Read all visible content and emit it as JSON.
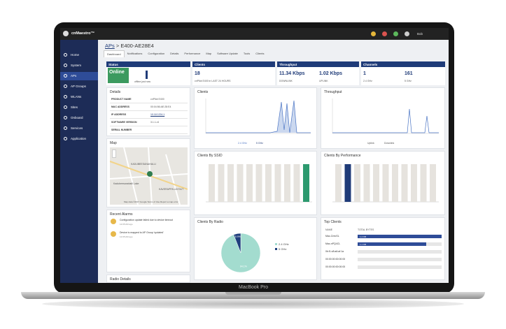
{
  "app": {
    "logo": "cnMaestro™",
    "user": "Bob"
  },
  "sidebar": [
    "Home",
    "System",
    "APs",
    "AP Groups",
    "WLANs",
    "Sites",
    "Onboard",
    "Services",
    "Application"
  ],
  "breadcrumb": {
    "parent": "APs",
    "current": "> E400-AE28E4"
  },
  "tabs": [
    "Dashboard",
    "Notifications",
    "Configuration",
    "Details",
    "Performance",
    "Map",
    "Software Update",
    "Tools",
    "Clients"
  ],
  "summary": {
    "status": {
      "title": "Status",
      "state": "Online",
      "sub": "offline just now"
    },
    "clients": {
      "title": "Clients",
      "value": "18",
      "sub": "cnPilot E400 in LAST 24 HOURS"
    },
    "throughput": {
      "title": "Throughput",
      "down": "11.34 Kbps",
      "down_label": "DOWNLINK",
      "up": "1.02 Kbps",
      "up_label": "UPLINK"
    },
    "channels": {
      "title": "Channels",
      "c24": "1",
      "c24_label": "2.4 GHz",
      "c5": "161",
      "c5_label": "5 GHz"
    }
  },
  "details": {
    "title": "Details",
    "rows": [
      [
        "PRODUCT NAME",
        "cnPilot E400"
      ],
      [
        "MAC ADDRESS",
        "00:04:56:AE:28:E4"
      ],
      [
        "IP ADDRESS",
        "10.110.224.1"
      ],
      [
        "SOFTWARE VERSION",
        "3.1.1-r4"
      ],
      [
        "SERIAL NUMBER"
      ]
    ]
  },
  "map": {
    "title": "Map",
    "labels": [
      "KADUBEESANAHALLI",
      "Kadubeesanahalli Lake",
      "KAVERAPPA LAYOUT"
    ],
    "footer": "Map data ©2017 Google  Terms of Use  Report a map error"
  },
  "alarms": {
    "title": "Recent Alarms",
    "items": [
      {
        "text": "Configuration update failed due to device timeout",
        "time": "12:05 AM ago"
      },
      {
        "text": "Device is mapped to AP Group 'updated'",
        "time": "12:05 AM ago"
      }
    ]
  },
  "panels": {
    "clients": "Clients",
    "throughput": "Throughput",
    "ssid": "Clients By SSID",
    "performance": "Clients By Performance",
    "radio": "Clients By Radio",
    "top": "Top Clients",
    "radio_details": "Radio Details"
  },
  "legends": {
    "clients": [
      "2.4 GHz",
      "5 GHz"
    ],
    "throughput": [
      "Uplink",
      "Downlink"
    ]
  },
  "radio_chart": {
    "type": "pie",
    "categories": [
      "2.4 GHz",
      "5 GHz"
    ],
    "values": [
      94.1,
      5.9
    ],
    "value_labels": [
      "94.1%",
      "5.9%"
    ],
    "colors": [
      "#a3dccf",
      "#1f3f7d"
    ]
  },
  "top_clients": {
    "headers": [
      "NAME",
      "TOTAL BYTES"
    ],
    "rows": [
      {
        "name": "Mac-CreoSL",
        "usage": "1.4 KB"
      },
      {
        "name": "Mac-nPQ4CL",
        "usage": "1.1 KB"
      },
      {
        "name": "0b:f1:c8:a6:af:1a"
      },
      {
        "name": "00:00:00:00:00:00"
      },
      {
        "name": "00:00:00:00:00:00"
      }
    ]
  },
  "laptop": "MacBook Pro"
}
